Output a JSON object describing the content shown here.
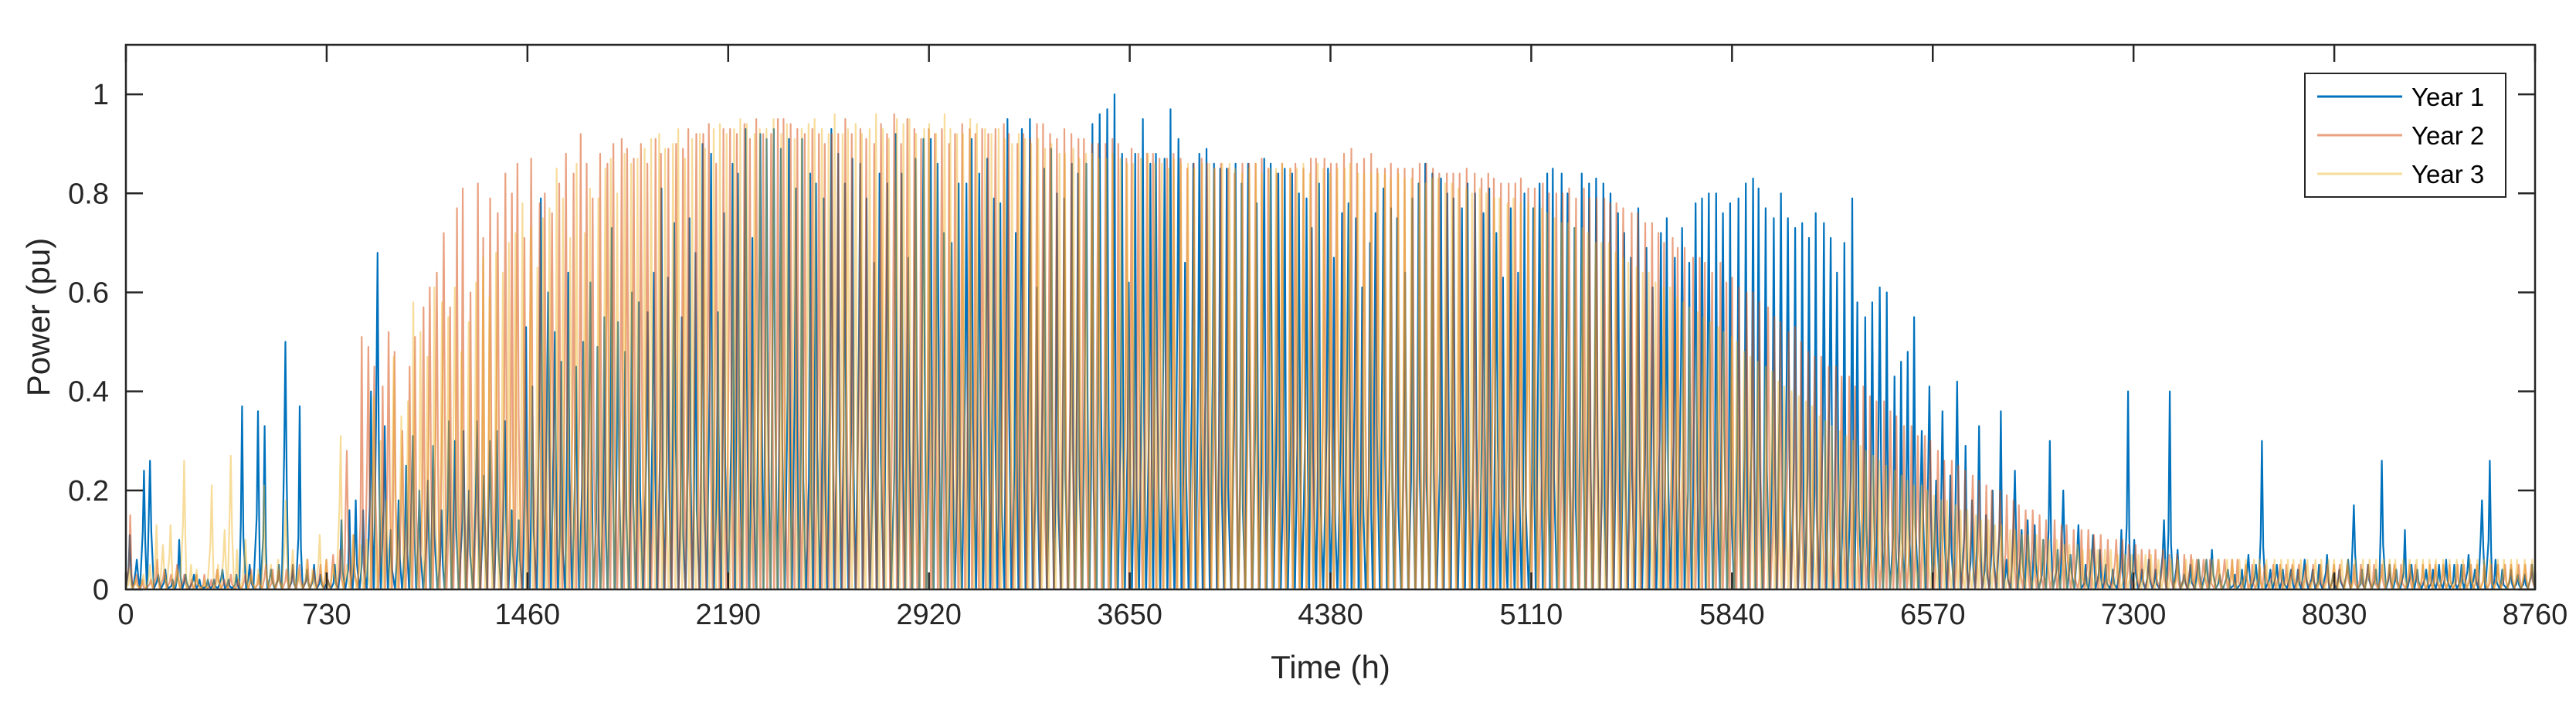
{
  "chart_data": {
    "type": "line",
    "title": "",
    "xlabel": "Time (h)",
    "ylabel": "Power (pu)",
    "xlim": [
      0,
      8760
    ],
    "ylim": [
      0,
      1.1
    ],
    "xticks": [
      0,
      730,
      1460,
      2190,
      2920,
      3650,
      4380,
      5110,
      5840,
      6570,
      7300,
      8030,
      8760
    ],
    "xtick_labels": [
      "0",
      "730",
      "1460",
      "2190",
      "2920",
      "3650",
      "4380",
      "5110",
      "5840",
      "6570",
      "7300",
      "8030",
      "8760"
    ],
    "yticks": [
      0,
      0.2,
      0.4,
      0.6,
      0.8,
      1
    ],
    "ytick_labels": [
      "0",
      "0.2",
      "0.4",
      "0.6",
      "0.8",
      "1"
    ],
    "grid": false,
    "legend_position": "top-right",
    "series": [
      {
        "name": "Year 1",
        "color": "#0072BD",
        "note_daily_peaks": "hourly series (8760 points) — recorded as peak power of each day",
        "daily_peaks": [
          0.11,
          0.06,
          0.24,
          0.26,
          0.03,
          0.04,
          0.02,
          0.1,
          0.03,
          0.03,
          0.02,
          0.02,
          0.02,
          0.04,
          0.02,
          0.03,
          0.37,
          0.05,
          0.36,
          0.33,
          0.04,
          0.05,
          0.5,
          0.05,
          0.37,
          0.04,
          0.05,
          0.03,
          0.02,
          0.05,
          0.14,
          0.16,
          0.18,
          0.16,
          0.4,
          0.68,
          0.33,
          0.12,
          0.18,
          0.25,
          0.31,
          0.2,
          0.22,
          0.29,
          0.16,
          0.34,
          0.3,
          0.32,
          0.2,
          0.34,
          0.23,
          0.3,
          0.32,
          0.34,
          0.16,
          0.14,
          0.53,
          0.41,
          0.79,
          0.6,
          0.52,
          0.46,
          0.64,
          0.45,
          0.5,
          0.62,
          0.49,
          0.55,
          0.73,
          0.54,
          0.48,
          0.6,
          0.58,
          0.56,
          0.64,
          0.81,
          0.63,
          0.74,
          0.55,
          0.75,
          0.68,
          0.9,
          0.88,
          0.56,
          0.76,
          0.86,
          0.84,
          0.93,
          0.71,
          0.92,
          0.91,
          0.93,
          0.89,
          0.91,
          0.81,
          0.91,
          0.84,
          0.82,
          0.79,
          0.93,
          0.88,
          0.82,
          0.87,
          0.86,
          0.79,
          0.66,
          0.84,
          0.82,
          0.92,
          0.84,
          0.67,
          0.87,
          0.91,
          0.91,
          0.86,
          0.72,
          0.7,
          0.82,
          0.82,
          0.91,
          0.84,
          0.87,
          0.79,
          0.78,
          0.95,
          0.72,
          0.93,
          0.95,
          0.61,
          0.85,
          0.89,
          0.8,
          0.79,
          0.86,
          0.84,
          0.86,
          0.94,
          0.96,
          0.97,
          1.0,
          0.88,
          0.62,
          0.88,
          0.95,
          0.86,
          0.88,
          0.87,
          0.97,
          0.91,
          0.66,
          0.86,
          0.88,
          0.89,
          0.86,
          0.85,
          0.85,
          0.86,
          0.82,
          0.86,
          0.78,
          0.87,
          0.86,
          0.84,
          0.85,
          0.84,
          0.8,
          0.79,
          0.73,
          0.82,
          0.85,
          0.67,
          0.76,
          0.78,
          0.75,
          0.61,
          0.7,
          0.76,
          0.81,
          0.77,
          0.75,
          0.64,
          0.79,
          0.82,
          0.86,
          0.84,
          0.83,
          0.8,
          0.79,
          0.77,
          0.82,
          0.8,
          0.76,
          0.81,
          0.72,
          0.63,
          0.77,
          0.64,
          0.8,
          0.77,
          0.82,
          0.84,
          0.85,
          0.84,
          0.8,
          0.73,
          0.84,
          0.82,
          0.83,
          0.82,
          0.8,
          0.76,
          0.72,
          0.67,
          0.77,
          0.69,
          0.61,
          0.72,
          0.75,
          0.67,
          0.73,
          0.66,
          0.78,
          0.79,
          0.8,
          0.8,
          0.76,
          0.78,
          0.79,
          0.82,
          0.83,
          0.81,
          0.77,
          0.75,
          0.8,
          0.75,
          0.73,
          0.74,
          0.71,
          0.76,
          0.74,
          0.71,
          0.64,
          0.7,
          0.79,
          0.58,
          0.55,
          0.58,
          0.61,
          0.6,
          0.43,
          0.46,
          0.48,
          0.55,
          0.32,
          0.41,
          0.22,
          0.36,
          0.23,
          0.42,
          0.29,
          0.18,
          0.33,
          0.15,
          0.2,
          0.36,
          0.06,
          0.24,
          0.12,
          0.14,
          0.13,
          0.1,
          0.3,
          0.08,
          0.2,
          0.07,
          0.13,
          0.05,
          0.11,
          0.08,
          0.05,
          0.04,
          0.12,
          0.4,
          0.1,
          0.04,
          0.06,
          0.04,
          0.14,
          0.4,
          0.08,
          0.03,
          0.05,
          0.06,
          0.06,
          0.08,
          0.03,
          0.04,
          0.03,
          0.04,
          0.07,
          0.05,
          0.3,
          0.04,
          0.05,
          0.04,
          0.04,
          0.04,
          0.06,
          0.04,
          0.05,
          0.07,
          0.03,
          0.04,
          0.06,
          0.17,
          0.04,
          0.05,
          0.04,
          0.26,
          0.05,
          0.04,
          0.12,
          0.05,
          0.04,
          0.04,
          0.04,
          0.05,
          0.06,
          0.05,
          0.05,
          0.07,
          0.04,
          0.18,
          0.26,
          0.06,
          0.04,
          0.04,
          0.03,
          0.03,
          0.05
        ]
      },
      {
        "name": "Year 2",
        "color": "#D95319",
        "note_daily_peaks": "hourly series (8760 points) — recorded as peak power of each day",
        "daily_peaks": [
          0.15,
          0.03,
          0.02,
          0.02,
          0.06,
          0.04,
          0.03,
          0.05,
          0.03,
          0.02,
          0.03,
          0.03,
          0.02,
          0.04,
          0.02,
          0.03,
          0.02,
          0.03,
          0.04,
          0.03,
          0.05,
          0.04,
          0.04,
          0.04,
          0.05,
          0.05,
          0.06,
          0.04,
          0.05,
          0.06,
          0.07,
          0.08,
          0.28,
          0.11,
          0.51,
          0.49,
          0.45,
          0.41,
          0.52,
          0.48,
          0.32,
          0.45,
          0.51,
          0.57,
          0.61,
          0.64,
          0.72,
          0.57,
          0.77,
          0.81,
          0.6,
          0.82,
          0.71,
          0.79,
          0.76,
          0.84,
          0.8,
          0.86,
          0.71,
          0.87,
          0.78,
          0.8,
          0.76,
          0.82,
          0.88,
          0.84,
          0.92,
          0.86,
          0.79,
          0.88,
          0.86,
          0.9,
          0.91,
          0.89,
          0.87,
          0.9,
          0.86,
          0.91,
          0.88,
          0.89,
          0.9,
          0.89,
          0.93,
          0.92,
          0.92,
          0.94,
          0.86,
          0.93,
          0.93,
          0.92,
          0.94,
          0.91,
          0.95,
          0.92,
          0.92,
          0.95,
          0.95,
          0.94,
          0.93,
          0.92,
          0.93,
          0.92,
          0.9,
          0.92,
          0.92,
          0.95,
          0.92,
          0.93,
          0.91,
          0.9,
          0.94,
          0.92,
          0.96,
          0.9,
          0.95,
          0.93,
          0.91,
          0.93,
          0.92,
          0.93,
          0.9,
          0.92,
          0.94,
          0.93,
          0.92,
          0.93,
          0.92,
          0.93,
          0.94,
          0.92,
          0.9,
          0.92,
          0.91,
          0.94,
          0.94,
          0.92,
          0.91,
          0.93,
          0.92,
          0.91,
          0.91,
          0.9,
          0.9,
          0.9,
          0.91,
          0.9,
          0.87,
          0.89,
          0.88,
          0.88,
          0.88,
          0.87,
          0.87,
          0.88,
          0.87,
          0.85,
          0.86,
          0.87,
          0.86,
          0.85,
          0.86,
          0.85,
          0.84,
          0.86,
          0.86,
          0.86,
          0.87,
          0.85,
          0.84,
          0.86,
          0.85,
          0.86,
          0.85,
          0.87,
          0.87,
          0.87,
          0.86,
          0.86,
          0.88,
          0.89,
          0.86,
          0.87,
          0.88,
          0.85,
          0.85,
          0.86,
          0.85,
          0.85,
          0.85,
          0.86,
          0.86,
          0.85,
          0.84,
          0.84,
          0.84,
          0.84,
          0.85,
          0.84,
          0.83,
          0.84,
          0.83,
          0.82,
          0.82,
          0.82,
          0.83,
          0.81,
          0.81,
          0.82,
          0.8,
          0.8,
          0.8,
          0.81,
          0.79,
          0.81,
          0.79,
          0.79,
          0.79,
          0.78,
          0.78,
          0.77,
          0.76,
          0.76,
          0.74,
          0.74,
          0.72,
          0.7,
          0.71,
          0.69,
          0.69,
          0.67,
          0.67,
          0.66,
          0.64,
          0.66,
          0.62,
          0.63,
          0.61,
          0.6,
          0.6,
          0.58,
          0.57,
          0.55,
          0.54,
          0.52,
          0.53,
          0.5,
          0.48,
          0.47,
          0.47,
          0.45,
          0.45,
          0.43,
          0.43,
          0.41,
          0.41,
          0.39,
          0.38,
          0.38,
          0.36,
          0.35,
          0.33,
          0.33,
          0.31,
          0.31,
          0.3,
          0.28,
          0.26,
          0.26,
          0.25,
          0.24,
          0.23,
          0.22,
          0.21,
          0.2,
          0.2,
          0.19,
          0.18,
          0.17,
          0.16,
          0.16,
          0.15,
          0.14,
          0.14,
          0.13,
          0.13,
          0.12,
          0.12,
          0.12,
          0.11,
          0.11,
          0.1,
          0.1,
          0.1,
          0.09,
          0.09,
          0.08,
          0.08,
          0.08,
          0.08,
          0.07,
          0.07,
          0.07,
          0.07,
          0.06,
          0.06,
          0.06,
          0.06,
          0.06,
          0.06,
          0.06,
          0.05,
          0.05,
          0.05,
          0.05,
          0.05,
          0.05,
          0.05,
          0.05,
          0.05,
          0.05,
          0.05,
          0.05,
          0.05,
          0.05,
          0.05,
          0.05,
          0.05,
          0.05,
          0.05,
          0.05,
          0.05,
          0.05,
          0.05,
          0.05,
          0.05,
          0.05,
          0.05,
          0.05,
          0.05,
          0.05,
          0.05,
          0.05,
          0.05,
          0.05,
          0.05,
          0.05,
          0.05,
          0.05,
          0.05,
          0.05,
          0.05,
          0.05,
          0.05
        ]
      },
      {
        "name": "Year 3",
        "color": "#EDB120",
        "note_daily_peaks": "hourly series (8760 points) — recorded as peak power of each day",
        "daily_peaks": [
          0.04,
          0.02,
          0.03,
          0.05,
          0.13,
          0.09,
          0.13,
          0.04,
          0.26,
          0.05,
          0.04,
          0.02,
          0.21,
          0.05,
          0.12,
          0.27,
          0.08,
          0.1,
          0.03,
          0.04,
          0.21,
          0.05,
          0.06,
          0.18,
          0.08,
          0.04,
          0.06,
          0.04,
          0.11,
          0.06,
          0.05,
          0.31,
          0.05,
          0.11,
          0.09,
          0.1,
          0.39,
          0.3,
          0.18,
          0.47,
          0.35,
          0.38,
          0.58,
          0.52,
          0.47,
          0.61,
          0.58,
          0.55,
          0.61,
          0.48,
          0.54,
          0.62,
          0.67,
          0.59,
          0.68,
          0.64,
          0.7,
          0.72,
          0.78,
          0.73,
          0.65,
          0.75,
          0.77,
          0.85,
          0.79,
          0.71,
          0.86,
          0.72,
          0.81,
          0.79,
          0.85,
          0.87,
          0.8,
          0.88,
          0.86,
          0.87,
          0.89,
          0.91,
          0.92,
          0.89,
          0.9,
          0.93,
          0.87,
          0.91,
          0.92,
          0.89,
          0.93,
          0.94,
          0.92,
          0.93,
          0.95,
          0.94,
          0.92,
          0.93,
          0.93,
          0.95,
          0.92,
          0.94,
          0.91,
          0.93,
          0.94,
          0.95,
          0.93,
          0.92,
          0.96,
          0.92,
          0.93,
          0.94,
          0.92,
          0.93,
          0.96,
          0.93,
          0.91,
          0.95,
          0.94,
          0.95,
          0.92,
          0.93,
          0.94,
          0.92,
          0.96,
          0.93,
          0.92,
          0.92,
          0.95,
          0.94,
          0.93,
          0.92,
          0.93,
          0.91,
          0.9,
          0.92,
          0.91,
          0.9,
          0.91,
          0.89,
          0.9,
          0.88,
          0.88,
          0.89,
          0.87,
          0.88,
          0.88,
          0.87,
          0.87,
          0.88,
          0.87,
          0.86,
          0.86,
          0.87,
          0.88,
          0.86,
          0.86,
          0.85,
          0.87,
          0.86,
          0.86,
          0.85,
          0.86,
          0.86,
          0.85,
          0.86,
          0.86,
          0.85,
          0.84,
          0.85,
          0.86,
          0.84,
          0.85,
          0.85,
          0.86,
          0.85,
          0.85,
          0.86,
          0.84,
          0.86,
          0.85,
          0.84,
          0.85,
          0.85,
          0.86,
          0.84,
          0.84,
          0.84,
          0.84,
          0.84,
          0.83,
          0.84,
          0.83,
          0.83,
          0.82,
          0.82,
          0.83,
          0.83,
          0.82,
          0.82,
          0.81,
          0.81,
          0.8,
          0.81,
          0.8,
          0.79,
          0.79,
          0.78,
          0.79,
          0.78,
          0.78,
          0.77,
          0.77,
          0.76,
          0.75,
          0.74,
          0.74,
          0.73,
          0.73,
          0.72,
          0.7,
          0.7,
          0.7,
          0.68,
          0.67,
          0.66,
          0.65,
          0.64,
          0.64,
          0.62,
          0.61,
          0.61,
          0.59,
          0.58,
          0.57,
          0.56,
          0.55,
          0.54,
          0.53,
          0.52,
          0.51,
          0.5,
          0.48,
          0.47,
          0.46,
          0.45,
          0.44,
          0.42,
          0.41,
          0.4,
          0.39,
          0.38,
          0.37,
          0.35,
          0.34,
          0.33,
          0.32,
          0.31,
          0.3,
          0.29,
          0.28,
          0.27,
          0.26,
          0.25,
          0.24,
          0.23,
          0.22,
          0.21,
          0.21,
          0.2,
          0.19,
          0.18,
          0.18,
          0.17,
          0.16,
          0.16,
          0.15,
          0.14,
          0.14,
          0.13,
          0.13,
          0.12,
          0.12,
          0.11,
          0.11,
          0.11,
          0.1,
          0.1,
          0.1,
          0.09,
          0.09,
          0.09,
          0.08,
          0.08,
          0.08,
          0.08,
          0.08,
          0.07,
          0.07,
          0.07,
          0.07,
          0.07,
          0.07,
          0.06,
          0.06,
          0.06,
          0.06,
          0.06,
          0.06,
          0.06,
          0.06,
          0.06,
          0.06,
          0.06,
          0.06,
          0.06,
          0.06,
          0.06,
          0.06,
          0.06,
          0.06,
          0.06,
          0.06,
          0.06,
          0.06,
          0.06,
          0.06,
          0.06,
          0.06,
          0.06,
          0.06,
          0.06,
          0.06,
          0.06,
          0.06,
          0.06,
          0.06,
          0.06,
          0.06,
          0.06,
          0.06,
          0.06,
          0.06,
          0.06,
          0.06,
          0.06,
          0.06,
          0.06,
          0.06,
          0.06,
          0.06,
          0.06,
          0.06,
          0.06,
          0.06,
          0.06,
          0.06,
          0.06,
          0.06
        ]
      }
    ]
  }
}
